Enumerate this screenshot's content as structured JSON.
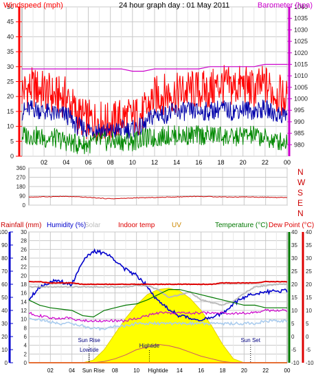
{
  "title": "24 hour graph day : 01 May 2011",
  "colors": {
    "wind": "#ff0000",
    "wind_avg": "#0000aa",
    "wind_low": "#008800",
    "barometer": "#cc00cc",
    "direction": "#cc0000",
    "rain_axis": "#0000aa",
    "humidity": "#0000cc",
    "solar": "#bbbbbb",
    "indoor_temp": "#dd0000",
    "uv": "#cc8800",
    "temperature": "#007700",
    "dewpoint": "#dd0000",
    "sun_fill": "#ffff00",
    "grid": "#c8c8c8"
  },
  "chart_data": [
    {
      "type": "line",
      "panel": "wind-barometer",
      "title": "24 hour graph day : 01 May 2011",
      "left_axis_label": "Windspeed (mph)",
      "right_axis_label": "Barometer (hpa)",
      "ylim_left": [
        0,
        50
      ],
      "ylim_right": [
        975,
        1040
      ],
      "left_ticks": [
        "0",
        "5",
        "10",
        "15",
        "20",
        "25",
        "30",
        "35",
        "40",
        "45",
        "50"
      ],
      "right_ticks": [
        "980",
        "985",
        "990",
        "995",
        "1000",
        "1005",
        "1010",
        "1015",
        "1020",
        "1025",
        "1030",
        "1035",
        "1040"
      ],
      "x_ticks": [
        "02",
        "04",
        "06",
        "08",
        "10",
        "12",
        "14",
        "16",
        "18",
        "20",
        "22",
        "00"
      ],
      "x_hours": [
        0,
        1,
        2,
        3,
        4,
        5,
        6,
        7,
        8,
        9,
        10,
        11,
        12,
        13,
        14,
        15,
        16,
        17,
        18,
        19,
        20,
        21,
        22,
        23,
        24
      ],
      "series": [
        {
          "name": "Wind gust",
          "axis": "left",
          "values": [
            22,
            23,
            22,
            20,
            20,
            14,
            12,
            12,
            11,
            13,
            13,
            14,
            20,
            21,
            21,
            22,
            22,
            22,
            24,
            23,
            24,
            22,
            24,
            21,
            19
          ]
        },
        {
          "name": "Wind average",
          "axis": "left",
          "values": [
            15,
            16,
            15,
            14,
            14,
            10,
            9,
            9,
            8,
            9,
            9,
            10,
            14,
            14,
            15,
            15,
            15,
            15,
            16,
            15,
            16,
            15,
            16,
            14,
            14
          ]
        },
        {
          "name": "Wind low",
          "axis": "left",
          "values": [
            7,
            7,
            6,
            6,
            5,
            4,
            4,
            5,
            5,
            5,
            5,
            6,
            6,
            7,
            7,
            7,
            7,
            7,
            7,
            6,
            7,
            7,
            6,
            5,
            5
          ]
        },
        {
          "name": "Barometer",
          "axis": "right",
          "values": [
            1013,
            1013,
            1013,
            1013,
            1013,
            1013,
            1013,
            1013,
            1013,
            1013,
            1012,
            1012,
            1013,
            1013,
            1013,
            1013,
            1013,
            1014,
            1014,
            1014,
            1014,
            1014,
            1015,
            1015,
            1015
          ]
        }
      ]
    },
    {
      "type": "line",
      "panel": "wind-direction",
      "ylim": [
        0,
        360
      ],
      "left_ticks": [
        "0",
        "90",
        "180",
        "270",
        "360"
      ],
      "right_labels": [
        "N",
        "W",
        "S",
        "E",
        "N"
      ],
      "x_ticks": [
        "02",
        "04",
        "06",
        "08",
        "10",
        "12",
        "14",
        "16",
        "18",
        "20",
        "22",
        "00"
      ],
      "x_hours": [
        0,
        1,
        2,
        3,
        4,
        5,
        6,
        7,
        8,
        9,
        10,
        11,
        12,
        13,
        14,
        15,
        16,
        17,
        18,
        19,
        20,
        21,
        22,
        23,
        24
      ],
      "series": [
        {
          "name": "Wind direction",
          "values": [
            78,
            80,
            82,
            84,
            82,
            78,
            72,
            64,
            62,
            66,
            70,
            72,
            74,
            78,
            80,
            84,
            84,
            82,
            80,
            78,
            80,
            78,
            76,
            74,
            74
          ]
        }
      ]
    },
    {
      "type": "line",
      "panel": "temperature-humidity",
      "legend": [
        {
          "key": "rain",
          "label": "Rainfall (mm)"
        },
        {
          "key": "humidity",
          "label": "Humidity (%)"
        },
        {
          "key": "solar",
          "label": "Solar"
        },
        {
          "key": "indoor",
          "label": "Indoor temp"
        },
        {
          "key": "uv",
          "label": "UV"
        },
        {
          "key": "temp",
          "label": "Temperature (°C)"
        },
        {
          "key": "dew",
          "label": "Dew Point (°C)"
        }
      ],
      "humidity_ticks": [
        "0",
        "10",
        "20",
        "30",
        "40",
        "50",
        "60",
        "70",
        "80",
        "90",
        "100"
      ],
      "rain_ticks": [
        "0",
        "2",
        "4",
        "6",
        "8",
        "10",
        "12",
        "14",
        "16",
        "18",
        "20",
        "22",
        "24",
        "26",
        "28",
        "30"
      ],
      "temp_ticks": [
        "-10",
        "-5",
        "0",
        "5",
        "10",
        "15",
        "20",
        "25",
        "30",
        "35",
        "40"
      ],
      "dew_ticks": [
        "-10",
        "-5",
        "0",
        "5",
        "10",
        "15",
        "20",
        "25",
        "30",
        "35",
        "40"
      ],
      "ylim_humidity": [
        0,
        100
      ],
      "ylim_rain": [
        0,
        30
      ],
      "ylim_temp": [
        -10,
        40
      ],
      "x_ticks": [
        "02",
        "04",
        "Sun Rise",
        "08",
        "10",
        "Hightide",
        "14",
        "16",
        "18",
        "20",
        "22",
        "00"
      ],
      "x_hours": [
        0,
        1,
        2,
        3,
        4,
        5,
        6,
        7,
        8,
        9,
        10,
        11,
        12,
        13,
        14,
        15,
        16,
        17,
        18,
        19,
        20,
        21,
        22,
        23,
        24
      ],
      "annotations": [
        {
          "label": "Sun Rise",
          "hour": 5.6
        },
        {
          "label": "Lowtide",
          "hour": 5.6
        },
        {
          "label": "Hightide",
          "hour": 11.2
        },
        {
          "label": "Sun Set",
          "hour": 20.6
        }
      ],
      "series": [
        {
          "name": "Humidity",
          "axis": "humidity",
          "values": [
            49,
            58,
            62,
            62,
            60,
            78,
            85,
            84,
            79,
            71,
            67,
            59,
            47,
            41,
            36,
            34,
            33,
            34,
            38,
            45,
            50,
            53,
            54,
            55,
            55
          ]
        },
        {
          "name": "Solar",
          "axis": "humidity",
          "values": [
            58,
            58,
            58,
            58,
            58,
            58,
            58,
            58,
            58,
            58,
            59,
            59,
            56,
            50,
            52,
            54,
            48,
            46,
            44,
            47,
            53,
            58,
            59,
            60,
            60
          ]
        },
        {
          "name": "Indoor temp",
          "axis": "temp",
          "values": [
            21,
            21,
            20.5,
            20.5,
            20.5,
            20,
            20,
            20,
            20,
            20,
            20,
            20,
            20,
            20,
            20,
            20,
            20,
            20,
            20.5,
            20.5,
            20.5,
            20.5,
            21,
            21,
            21
          ]
        },
        {
          "name": "Temperature",
          "axis": "temp",
          "values": [
            14,
            12,
            11,
            10.5,
            10,
            8,
            7.5,
            10,
            11,
            12,
            12.5,
            14,
            16,
            18,
            18,
            17,
            16,
            15,
            14,
            13,
            12,
            12,
            11,
            11,
            11
          ]
        },
        {
          "name": "Dew point",
          "axis": "temp",
          "values": [
            9,
            8,
            7,
            7,
            7,
            6,
            6,
            6,
            6,
            6,
            7,
            8,
            9,
            9,
            9,
            9,
            9,
            9,
            9,
            9,
            9,
            9,
            10,
            10,
            10
          ]
        },
        {
          "name": "Outdoor low",
          "axis": "temp",
          "values": [
            7,
            6.5,
            5.5,
            5,
            5,
            4,
            3,
            3,
            4,
            4,
            5,
            5,
            5,
            5,
            5,
            5,
            5,
            5,
            5,
            5,
            5,
            5,
            6,
            6,
            6
          ]
        },
        {
          "name": "Rainfall",
          "axis": "rain",
          "values": [
            0,
            0,
            0,
            0,
            0,
            0,
            0,
            0,
            0,
            0,
            0,
            0,
            0,
            0,
            0,
            0,
            0,
            0,
            0,
            0,
            0,
            0,
            0,
            0,
            0
          ]
        },
        {
          "name": "UV",
          "axis": "humidity",
          "values": [
            0,
            0,
            0,
            0,
            0,
            0,
            0,
            1,
            3,
            6,
            10,
            12,
            14,
            13,
            11,
            8,
            5,
            3,
            1,
            0,
            0,
            0,
            0,
            0,
            0
          ]
        },
        {
          "name": "Solar radiation",
          "axis": "humidity",
          "fill": true,
          "values": [
            0,
            0,
            0,
            0,
            0,
            0,
            2,
            10,
            22,
            34,
            44,
            52,
            56,
            57,
            55,
            49,
            40,
            28,
            14,
            3,
            0,
            0,
            0,
            0,
            0
          ]
        }
      ]
    }
  ]
}
